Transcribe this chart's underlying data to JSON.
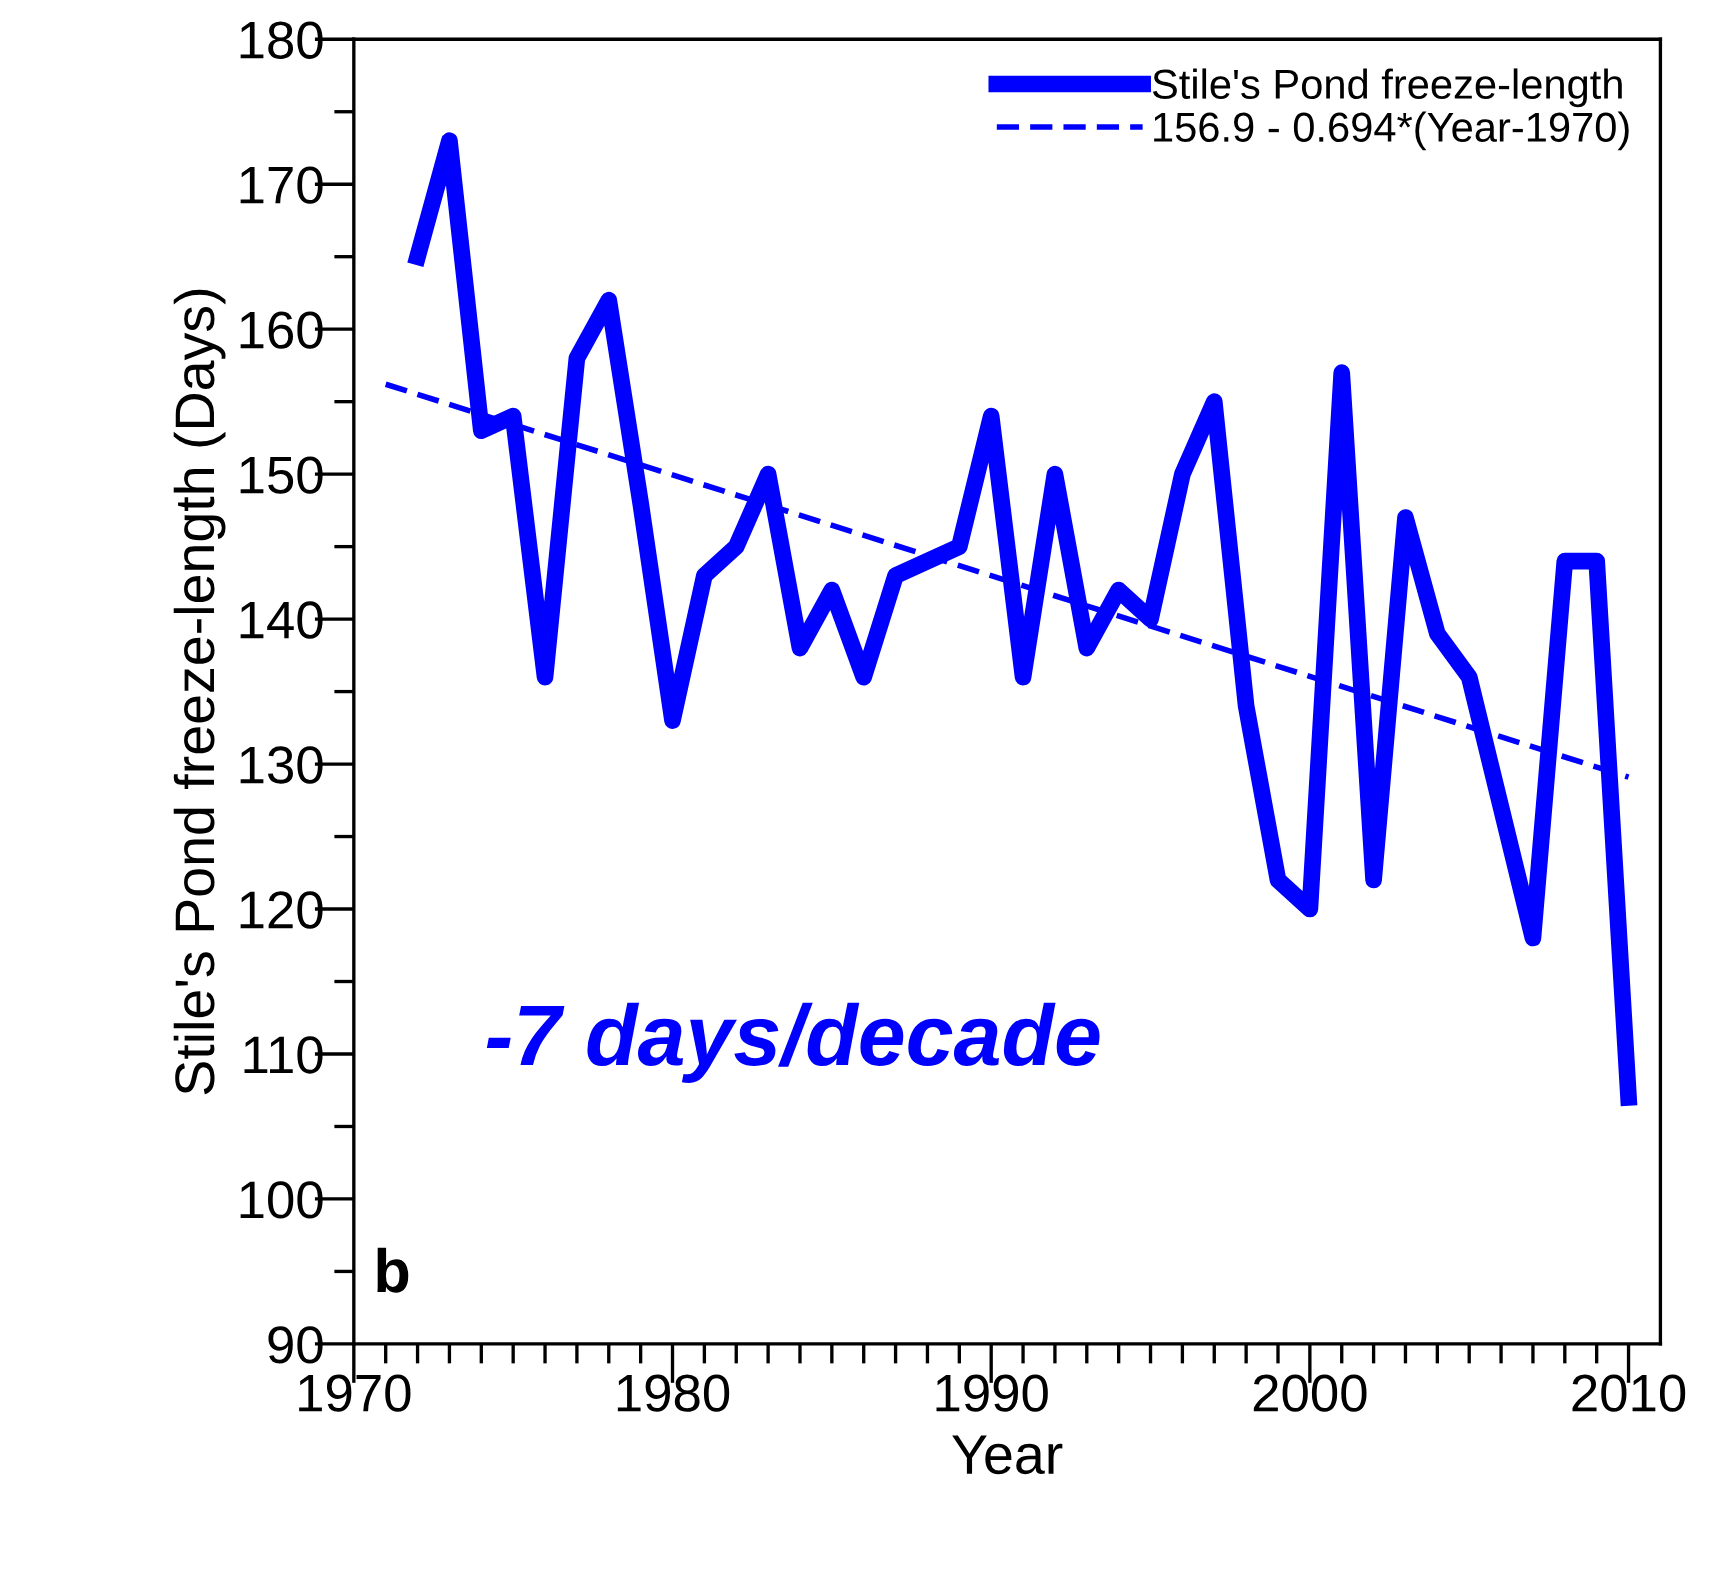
{
  "chart_data": {
    "type": "line",
    "xlabel": "Year",
    "ylabel": "Stile's Pond freeze-length (Days)",
    "series": [
      {
        "name": "Stile's Pond freeze-length",
        "color": "#0000ff",
        "line_style": "solid",
        "x": [
          1972,
          1973,
          1974,
          1975,
          1976,
          1977,
          1978,
          1979,
          1980,
          1981,
          1982,
          1983,
          1984,
          1985,
          1986,
          1987,
          1988,
          1989,
          1990,
          1991,
          1992,
          1993,
          1994,
          1995,
          1996,
          1997,
          1998,
          1999,
          2000,
          2001,
          2002,
          2003,
          2004,
          2005,
          2006,
          2007,
          2008,
          2009,
          2010
        ],
        "values": [
          165,
          173,
          153,
          154,
          136,
          158,
          162,
          148,
          133,
          143,
          145,
          150,
          138,
          142,
          136,
          143,
          144,
          145,
          154,
          136,
          150,
          138,
          142,
          140,
          150,
          155,
          134,
          122,
          120,
          157,
          122,
          147,
          139,
          136,
          127,
          118,
          144,
          144,
          107
        ]
      },
      {
        "name": "156.9 - 0.694*(Year-1970)",
        "color": "#0000ff",
        "line_style": "dashed",
        "x": [
          1971,
          2010
        ],
        "values": [
          156.2,
          129.1
        ]
      }
    ],
    "annotations": [
      "-7 days/decade",
      "b"
    ],
    "xlim": [
      1970,
      2011
    ],
    "xticks": [
      1970,
      {
        "value": 1971,
        "label": null
      },
      {
        "value": 1972,
        "label": null
      },
      {
        "value": 1973,
        "label": null
      },
      {
        "value": 1974,
        "label": null
      },
      {
        "value": 1975,
        "label": null
      },
      {
        "value": 1976,
        "label": null
      },
      {
        "value": 1977,
        "label": null
      },
      {
        "value": 1978,
        "label": null
      },
      {
        "value": 1979,
        "label": null
      },
      1980,
      {
        "value": 1981,
        "label": null
      },
      {
        "value": 1982,
        "label": null
      },
      {
        "value": 1983,
        "label": null
      },
      {
        "value": 1984,
        "label": null
      },
      {
        "value": 1985,
        "label": null
      },
      {
        "value": 1986,
        "label": null
      },
      {
        "value": 1987,
        "label": null
      },
      {
        "value": 1988,
        "label": null
      },
      {
        "value": 1989,
        "label": null
      },
      1990,
      {
        "value": 1991,
        "label": null
      },
      {
        "value": 1992,
        "label": null
      },
      {
        "value": 1993,
        "label": null
      },
      {
        "value": 1994,
        "label": null
      },
      {
        "value": 1995,
        "label": null
      },
      {
        "value": 1996,
        "label": null
      },
      {
        "value": 1997,
        "label": null
      },
      {
        "value": 1998,
        "label": null
      },
      {
        "value": 1999,
        "label": null
      },
      2000,
      {
        "value": 2001,
        "label": null
      },
      {
        "value": 2002,
        "label": null
      },
      {
        "value": 2003,
        "label": null
      },
      {
        "value": 2004,
        "label": null
      },
      {
        "value": 2005,
        "label": null
      },
      {
        "value": 2006,
        "label": null
      },
      {
        "value": 2007,
        "label": null
      },
      {
        "value": 2008,
        "label": null
      },
      {
        "value": 2009,
        "label": null
      },
      2010
    ],
    "ylim": [
      90,
      180
    ],
    "yticks": [
      90,
      {
        "value": 95,
        "label": null
      },
      100,
      {
        "value": 105,
        "label": null
      },
      110,
      {
        "value": 115,
        "label": null
      },
      120,
      {
        "value": 125,
        "label": null
      },
      130,
      {
        "value": 135,
        "label": null
      },
      140,
      {
        "value": 145,
        "label": null
      },
      150,
      {
        "value": 155,
        "label": null
      },
      160,
      {
        "value": 165,
        "label": null
      },
      170,
      {
        "value": 175,
        "label": null
      },
      180
    ],
    "grid": false,
    "legend": "top right",
    "marker": "none"
  }
}
